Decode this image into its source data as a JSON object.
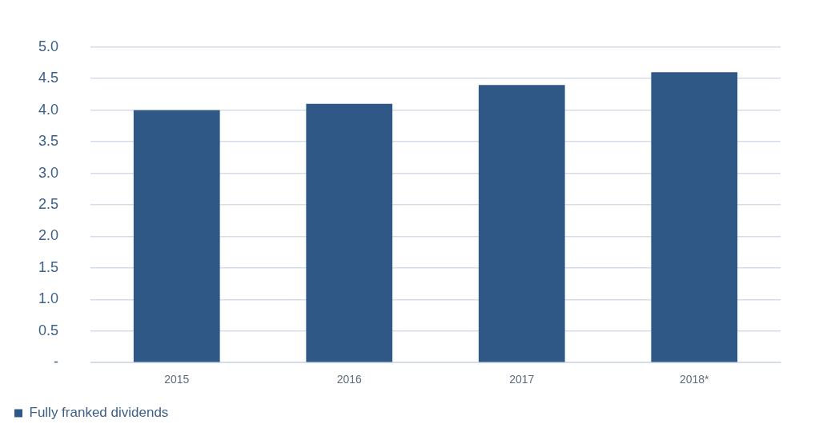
{
  "chart_data": {
    "type": "bar",
    "categories": [
      "2015",
      "2016",
      "2017",
      "2018*"
    ],
    "series": [
      {
        "name": "Fully franked dividends",
        "color": "#2f5887",
        "values": [
          4.0,
          4.1,
          4.4,
          4.6
        ]
      }
    ],
    "ylim": [
      0,
      5
    ],
    "yticks": [
      {
        "value": 0,
        "label": "-"
      },
      {
        "value": 0.5,
        "label": "0.5"
      },
      {
        "value": 1,
        "label": "1.0"
      },
      {
        "value": 1.5,
        "label": "1.5"
      },
      {
        "value": 2,
        "label": "2.0"
      },
      {
        "value": 2.5,
        "label": "2.5"
      },
      {
        "value": 3,
        "label": "3.0"
      },
      {
        "value": 3.5,
        "label": "3.5"
      },
      {
        "value": 4,
        "label": "4.0"
      },
      {
        "value": 4.5,
        "label": "4.5"
      },
      {
        "value": 5,
        "label": "5.0"
      }
    ],
    "grid": "y",
    "legend": "bottom left"
  }
}
